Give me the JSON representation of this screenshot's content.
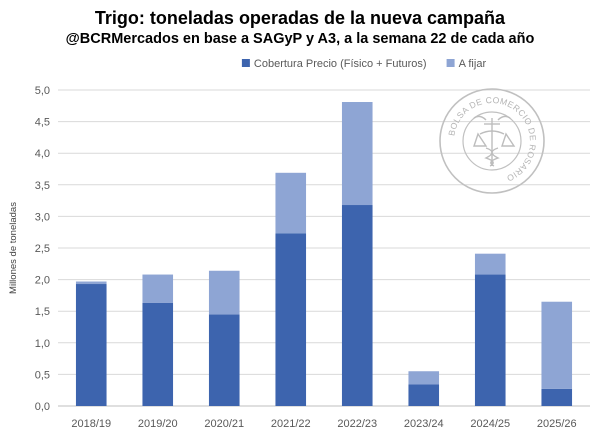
{
  "chart_data": {
    "type": "bar",
    "stacked": true,
    "title": "Trigo: toneladas operadas de la nueva campaña",
    "subtitle": "@BCRMercados en base a SAGyP y A3, a la semana 22 de cada año",
    "ylabel": "Millones de toneladas",
    "xlabel": "",
    "ylim": [
      0,
      5
    ],
    "yticks": [
      "0,0",
      "0,5",
      "1,0",
      "1,5",
      "2,0",
      "2,5",
      "3,0",
      "3,5",
      "4,0",
      "4,5",
      "5,0"
    ],
    "categories": [
      "2018/19",
      "2019/20",
      "2020/21",
      "2021/22",
      "2022/23",
      "2023/24",
      "2024/25",
      "2025/26"
    ],
    "series": [
      {
        "name": "Cobertura Precio (Físico + Futuros)",
        "color": "#3d64ae",
        "values": [
          1.93,
          1.63,
          1.45,
          2.73,
          3.18,
          0.34,
          2.08,
          0.27
        ]
      },
      {
        "name": "A fijar",
        "color": "#8ea5d4",
        "values": [
          0.04,
          0.45,
          0.69,
          0.96,
          1.63,
          0.21,
          0.33,
          1.38
        ]
      }
    ],
    "grid": true,
    "legend_position": "top"
  },
  "watermark": {
    "text": "BOLSA DE COMERCIO DE ROSARIO",
    "color": "#b4b4b4"
  }
}
